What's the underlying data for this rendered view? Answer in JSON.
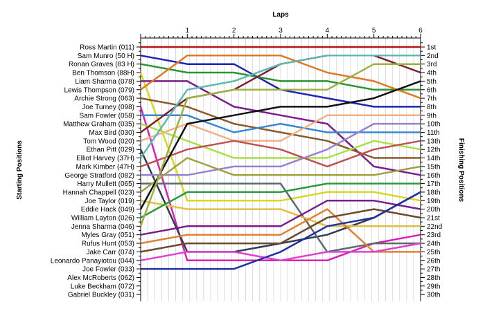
{
  "chart_data": {
    "type": "line",
    "title": "",
    "x_axis_title": "Laps",
    "left_axis_title": "Starting Positions",
    "right_axis_title": "Finishing Positions",
    "x": [
      0,
      1,
      2,
      3,
      4,
      5,
      6
    ],
    "x_tick_labels": [
      "1",
      "2",
      "3",
      "4",
      "5",
      "6"
    ],
    "positions_range": [
      1,
      30
    ],
    "grid": true,
    "starting_labels": [
      "Ross Martin (011)",
      "Sam Munro (50 H)",
      "Ronan Graves (83 H)",
      "Ben Thomson (88H)",
      "Liam Sharma (078)",
      "Lewis Thompson (079)",
      "Archie Strong (063)",
      "Joe Turney (098)",
      "Sam Fowler (058)",
      "Matthew Graham (035)",
      "Max Bird (030)",
      "Tom Wood (020)",
      "Ethan Pitt (029)",
      "Elliot Harvey (37H)",
      "Mark Kimber (47H)",
      "George Stratford (082)",
      "Harry Mullett (065)",
      "Hannah Chappell (023)",
      "Joe Taylor (019)",
      "Eddie Hack (049)",
      "William Layton (026)",
      "Jenna Sharma (046)",
      "Myles Gray (051)",
      "Rufus Hunt (053)",
      "Jake Carr (074)",
      "Leonardo Panayiotou (044)",
      "Joe Fowler (033)",
      "Alex McRoberts (062)",
      "Luke Beckham (072)",
      "Gabriel Buckley (031)"
    ],
    "finishing_labels": [
      "1st",
      "2nd",
      "3rd",
      "4th",
      "5th",
      "6th",
      "7th",
      "8th",
      "9th",
      "10th",
      "11th",
      "13th",
      "12th",
      "14th",
      "15th",
      "16th",
      "17th",
      "18th",
      "19th",
      "20th",
      "21st",
      "22nd",
      "23rd",
      "24th",
      "25th",
      "26th",
      "27th",
      "28th",
      "29th",
      "30th"
    ],
    "series": [
      {
        "start": 1,
        "color": "#b01818",
        "positions": [
          1,
          1,
          1,
          1,
          1,
          1,
          1
        ]
      },
      {
        "start": 2,
        "color": "#1c24b4",
        "positions": [
          2,
          3,
          3,
          6,
          7,
          8,
          8
        ]
      },
      {
        "start": 3,
        "color": "#2a962a",
        "positions": [
          3,
          4,
          4,
          5,
          5,
          6,
          6
        ]
      },
      {
        "start": 4,
        "color": "#d8d820",
        "positions": [
          4,
          19,
          19,
          19,
          18,
          18,
          19
        ]
      },
      {
        "start": 5,
        "color": "#7c1c8c",
        "positions": [
          5,
          5,
          8,
          9,
          10,
          15,
          16
        ]
      },
      {
        "start": 6,
        "color": "#e07824",
        "positions": [
          6,
          2,
          2,
          2,
          4,
          5,
          7
        ]
      },
      {
        "start": 7,
        "color": "#8a5a2a",
        "positions": [
          7,
          8,
          10,
          11,
          12,
          14,
          14
        ]
      },
      {
        "start": 8,
        "color": "#d820b4",
        "positions": [
          8,
          26,
          26,
          26,
          26,
          24,
          23
        ]
      },
      {
        "start": 9,
        "color": "#3c86d0",
        "positions": [
          9,
          9,
          11,
          10,
          11,
          11,
          11
        ]
      },
      {
        "start": 10,
        "color": "#a8e040",
        "positions": [
          10,
          12,
          14,
          14,
          14,
          12,
          13
        ]
      },
      {
        "start": 11,
        "color": "#7c1c2c",
        "positions": [
          11,
          7,
          6,
          3,
          2,
          2,
          4
        ]
      },
      {
        "start": 12,
        "color": "#f0b080",
        "positions": [
          12,
          10,
          12,
          12,
          9,
          9,
          9
        ]
      },
      {
        "start": 13,
        "color": "#303c50",
        "positions": [
          13,
          25,
          25,
          24,
          23,
          21,
          18
        ]
      },
      {
        "start": 14,
        "color": "#60b8b0",
        "positions": [
          14,
          6,
          5,
          3,
          2,
          2,
          2
        ]
      },
      {
        "start": 15,
        "color": "#c05050",
        "positions": [
          15,
          13,
          12,
          13,
          15,
          13,
          12
        ]
      },
      {
        "start": 16,
        "color": "#9a80d0",
        "positions": [
          16,
          16,
          15,
          15,
          13,
          10,
          10
        ]
      },
      {
        "start": 17,
        "color": "#5a6a6a",
        "positions": [
          17,
          17,
          17,
          17,
          25,
          24,
          24
        ]
      },
      {
        "start": 18,
        "color": "#a0a040",
        "positions": [
          18,
          14,
          16,
          16,
          16,
          16,
          15
        ]
      },
      {
        "start": 19,
        "color": "#e0c040",
        "positions": [
          19,
          20,
          20,
          20,
          22,
          22,
          22
        ]
      },
      {
        "start": 20,
        "color": "#101010",
        "positions": [
          20,
          10,
          9,
          8,
          8,
          7,
          5
        ]
      },
      {
        "start": 21,
        "color": "#2a9a3a",
        "positions": [
          21,
          18,
          18,
          18,
          17,
          17,
          17
        ]
      },
      {
        "start": 22,
        "color": "#a0b040",
        "positions": [
          22,
          7,
          6,
          6,
          6,
          3,
          3
        ]
      },
      {
        "start": 23,
        "color": "#7a1c8c",
        "positions": [
          23,
          22,
          22,
          22,
          19,
          19,
          20
        ]
      },
      {
        "start": 24,
        "color": "#e08030",
        "positions": [
          24,
          23,
          23,
          23,
          20,
          25,
          25
        ]
      },
      {
        "start": 25,
        "color": "#6a4a2a",
        "positions": [
          25,
          24,
          24,
          24,
          21,
          20,
          21
        ]
      },
      {
        "start": 26,
        "color": "#e040d0",
        "positions": [
          26,
          25,
          25,
          26,
          25,
          25,
          24
        ]
      },
      {
        "start": 27,
        "color": "#2030a0",
        "positions": [
          27,
          27,
          27,
          25,
          22,
          21,
          18
        ]
      }
    ]
  }
}
